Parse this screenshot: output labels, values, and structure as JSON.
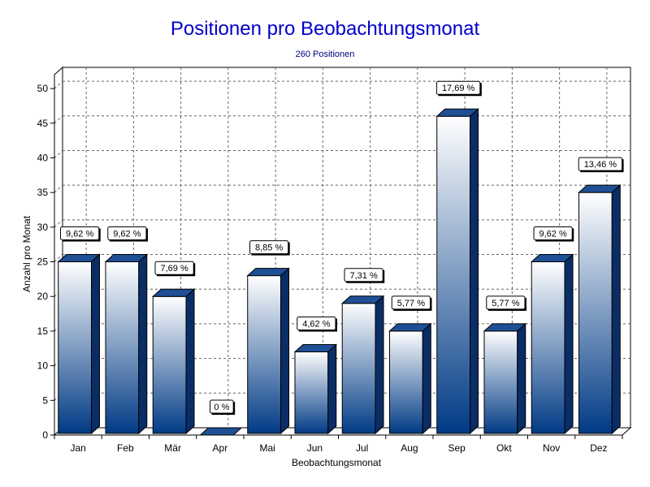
{
  "chart_data": {
    "type": "bar",
    "title": "Positionen pro Beobachtungsmonat",
    "subtitle": "260 Positionen",
    "xlabel": "Beobachtungsmonat",
    "ylabel": "Anzahl pro Monat",
    "categories": [
      "Jan",
      "Feb",
      "Mär",
      "Apr",
      "Mai",
      "Jun",
      "Jul",
      "Aug",
      "Sep",
      "Okt",
      "Nov",
      "Dez"
    ],
    "values": [
      25,
      25,
      20,
      0,
      23,
      12,
      19,
      15,
      46,
      15,
      25,
      35
    ],
    "data_labels": [
      "9,62 %",
      "9,62 %",
      "7,69 %",
      "0 %",
      "8,85 %",
      "4,62 %",
      "7,31 %",
      "5,77 %",
      "17,69 %",
      "5,77 %",
      "9,62 %",
      "13,46 %"
    ],
    "ylim": [
      0,
      52
    ],
    "yticks": [
      0,
      5,
      10,
      15,
      20,
      25,
      30,
      35,
      40,
      45,
      50
    ],
    "grid": true,
    "legend": "none",
    "bar_color_top": "#ffffff",
    "bar_color_bottom": "#003a85",
    "bar_top_face_color": "#1f4f95",
    "bar_side_color": "#0a2d66"
  }
}
